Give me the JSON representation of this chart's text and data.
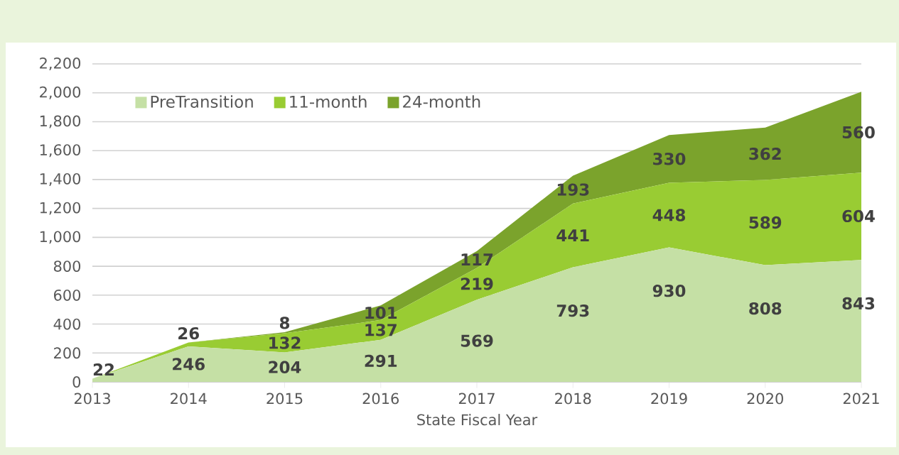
{
  "chart_data": {
    "type": "area",
    "stacked": true,
    "xlabel": "State Fiscal Year",
    "categories": [
      "2013",
      "2014",
      "2015",
      "2016",
      "2017",
      "2018",
      "2019",
      "2020",
      "2021"
    ],
    "series": [
      {
        "name": "PreTransition",
        "color": "#c5e0a5",
        "values": [
          22,
          246,
          204,
          291,
          569,
          793,
          930,
          808,
          843
        ],
        "value_labels": [
          "22",
          "246",
          "204",
          "291",
          "569",
          "793",
          "930",
          "808",
          "843"
        ]
      },
      {
        "name": "11-month",
        "color": "#99cc33",
        "values": [
          0,
          26,
          132,
          137,
          219,
          441,
          448,
          589,
          604
        ],
        "value_labels": [
          null,
          "26",
          "132",
          "137",
          "219",
          "441",
          "448",
          "589",
          "604"
        ]
      },
      {
        "name": "24-month",
        "color": "#7ba32c",
        "values": [
          0,
          0,
          8,
          101,
          117,
          193,
          330,
          362,
          560
        ],
        "value_labels": [
          null,
          null,
          "8",
          "101",
          "117",
          "193",
          "330",
          "362",
          "560"
        ]
      }
    ],
    "ylim": [
      0,
      2200
    ],
    "yticks": [
      0,
      200,
      400,
      600,
      800,
      {
        "value": 1000,
        "label": "1,000"
      },
      {
        "value": 1200,
        "label": "1,200"
      },
      {
        "value": 1400,
        "label": "1,400"
      },
      {
        "value": 1600,
        "label": "1,600"
      },
      {
        "value": 1800,
        "label": "1,800"
      },
      {
        "value": 2000,
        "label": "2,000"
      },
      {
        "value": 2200,
        "label": "2,200"
      }
    ],
    "grid": "y",
    "legend": "top left"
  }
}
